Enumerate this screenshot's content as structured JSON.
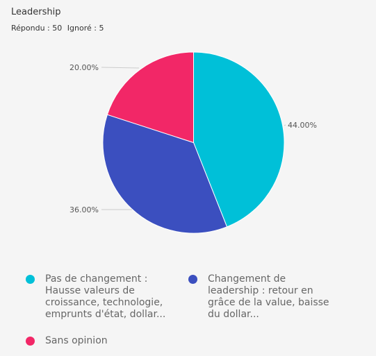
{
  "title": "Leadership",
  "stats": {
    "answered": "Répondu : 50",
    "skipped": "Ignoré : 5"
  },
  "chart_data": {
    "type": "pie",
    "title": "Leadership",
    "slices": [
      {
        "label": "Pas de changement : Hausse valeurs de croissance, technologie, emprunts d'état, dollar...",
        "value": 44.0,
        "value_label": "44.00%",
        "color": "#00c0d8"
      },
      {
        "label": "Changement de leadership : retour en grâce de la value, baisse du dollar...",
        "value": 36.0,
        "value_label": "36.00%",
        "color": "#3b4fbf"
      },
      {
        "label": "Sans opinion",
        "value": 20.0,
        "value_label": "20.00%",
        "color": "#f22767"
      }
    ],
    "legend_placement": "bottom"
  }
}
